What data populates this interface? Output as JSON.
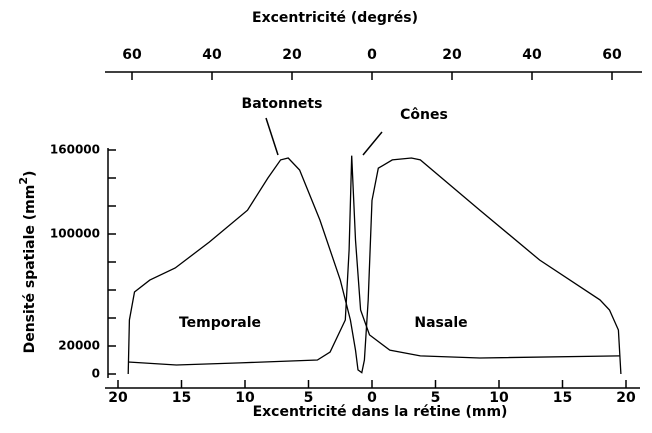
{
  "chart_data": {
    "type": "line",
    "top_axis_label": "Excentricité (degrés)",
    "x_label": "Excentricité dans la rétine (mm)",
    "y_label": {
      "text": "Densité spatiale (mm",
      "sup": "2",
      "end": ")"
    },
    "xlim": [
      -20,
      20
    ],
    "xticks": [
      {
        "value": -20,
        "label": "20"
      },
      {
        "value": -15,
        "label": "15"
      },
      {
        "value": -10,
        "label": "10"
      },
      {
        "value": -5,
        "label": "5"
      },
      0,
      5,
      10,
      15,
      20
    ],
    "x2lim": [
      -63.5,
      63.5
    ],
    "x2ticks": [
      {
        "value": -60,
        "label": "60"
      },
      {
        "value": -40,
        "label": "40"
      },
      {
        "value": -20,
        "label": "20"
      },
      0,
      20,
      40,
      60
    ],
    "ylim": [
      0,
      160000
    ],
    "yticks": [
      0,
      20000,
      100000,
      160000
    ],
    "yminor": [
      40000,
      60000,
      80000,
      120000,
      140000
    ],
    "series": [
      {
        "name": "Batonnets",
        "color": "#000000",
        "x": [
          -19.2,
          -19.1,
          -18.7,
          -17.5,
          -15.5,
          -12.8,
          -9.8,
          -8.2,
          -7.2,
          -6.6,
          -5.7,
          -4.1,
          -2.5,
          -1.7,
          -1.3,
          -1.1,
          -0.8,
          -0.6,
          -0.3,
          0,
          0.5,
          1.6,
          3.1,
          3.8,
          8.5,
          13.2,
          17.95,
          18.7,
          19.4,
          19.6
        ],
        "values": [
          0,
          38600,
          58600,
          67100,
          75700,
          94300,
          117000,
          140000,
          152900,
          154300,
          145700,
          110000,
          67100,
          38600,
          17100,
          2900,
          1000,
          10000,
          52900,
          124000,
          147000,
          152900,
          154300,
          152900,
          117000,
          81400,
          52900,
          45700,
          31400,
          0
        ]
      },
      {
        "name": "Cônes",
        "color": "#000000",
        "x": [
          -19.2,
          -15.4,
          -10.4,
          -4.3,
          -3.3,
          -2.1,
          -1.8,
          -1.6,
          -1.3,
          -0.9,
          -0.2,
          1.4,
          3.8,
          8.5,
          19.5
        ],
        "values": [
          8600,
          6400,
          7900,
          10000,
          15700,
          38600,
          88600,
          156000,
          95700,
          45700,
          27900,
          17100,
          12900,
          11400,
          12900
        ]
      }
    ],
    "annotations": [
      "Temporale",
      "Nasale"
    ]
  }
}
